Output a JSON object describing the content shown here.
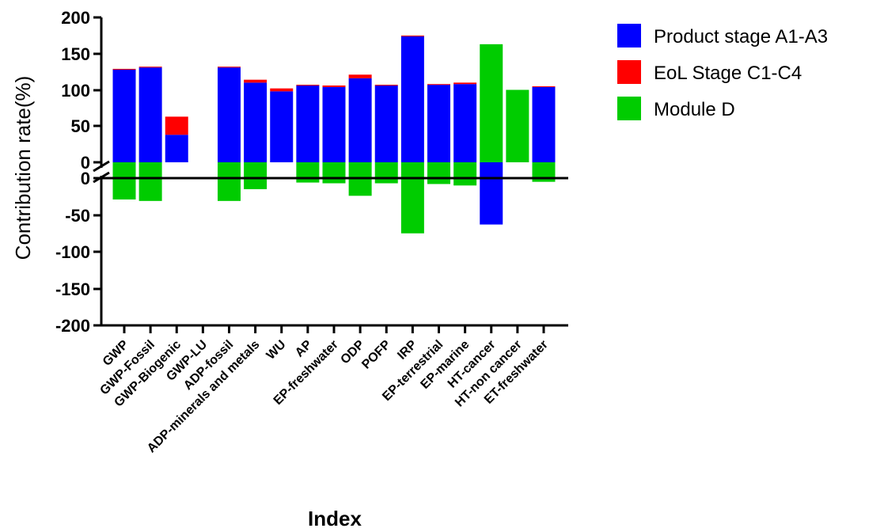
{
  "chart_data": {
    "type": "bar",
    "stacked": true,
    "title": "",
    "xlabel": "Index",
    "ylabel": "Contribution rate(%)",
    "ylim": [
      -200,
      200
    ],
    "axis_break": true,
    "yticks": [
      "200",
      "150",
      "100",
      "50",
      "0",
      "0",
      "-50",
      "-100",
      "-150",
      "-200"
    ],
    "categories": [
      "GWP",
      "GWP-Fossil",
      "GWP-Biogenic",
      "GWP-LU",
      "ADP-fossil",
      "ADP-minerals and metals",
      "WU",
      "AP",
      "EP-freshwater",
      "ODP",
      "POFP",
      "IRP",
      "EP-terrestrial",
      "EP-marine",
      "HT-cancer",
      "HT-non cancer",
      "ET-freshwater"
    ],
    "series": [
      {
        "name": "Product stage A1-A3",
        "color": "#0000FF",
        "values": [
          128,
          131,
          38,
          0,
          131,
          110,
          98,
          106,
          104,
          116,
          106,
          174,
          107,
          108,
          -63,
          0,
          104
        ]
      },
      {
        "name": "EoL Stage C1-C4",
        "color": "#FF0000",
        "values": [
          1,
          1,
          25,
          0,
          1,
          4,
          4,
          1,
          2,
          5,
          1,
          1,
          1,
          2,
          0,
          0,
          1
        ]
      },
      {
        "name": "Module D",
        "color": "#00CC00",
        "values": [
          -29,
          -31,
          0,
          0,
          -31,
          -15,
          0,
          -6,
          -7,
          -24,
          -7,
          -75,
          -8,
          -10,
          163,
          100,
          -5
        ]
      }
    ],
    "legend_position": "top-right",
    "grid": false
  }
}
